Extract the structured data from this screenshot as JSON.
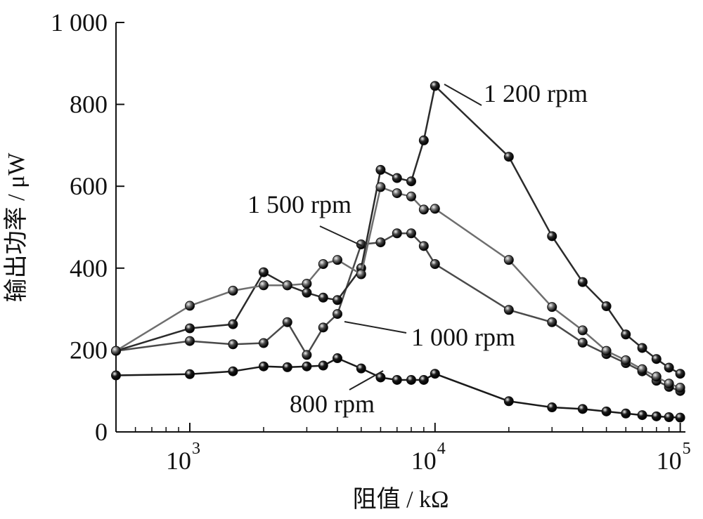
{
  "chart_data": {
    "type": "line",
    "title": "",
    "xlabel": "阻值 / kΩ",
    "ylabel": "输出功率 / μW",
    "xscale": "log",
    "xlim": [
      500,
      105000
    ],
    "ylim": [
      0,
      1000
    ],
    "x_ticks": [
      {
        "base": "10",
        "exp": "3",
        "value": 1000
      },
      {
        "base": "10",
        "exp": "4",
        "value": 10000
      },
      {
        "base": "10",
        "exp": "5",
        "value": 100000
      }
    ],
    "y_ticks": [
      {
        "label": "0",
        "value": 0
      },
      {
        "label": "200",
        "value": 200
      },
      {
        "label": "400",
        "value": 400
      },
      {
        "label": "600",
        "value": 600
      },
      {
        "label": "800",
        "value": 800
      },
      {
        "label": "1 000",
        "value": 1000
      }
    ],
    "grid": false,
    "legend": "none",
    "series": [
      {
        "name": "800 rpm",
        "color": "#1a1a1a",
        "x": [
          500,
          1000,
          1500,
          2000,
          2500,
          3000,
          3500,
          4000,
          5000,
          6000,
          7000,
          8000,
          9000,
          10000,
          20000,
          30000,
          40000,
          50000,
          60000,
          70000,
          80000,
          90000,
          100000
        ],
        "y": [
          138,
          141,
          148,
          160,
          158,
          160,
          162,
          180,
          155,
          133,
          127,
          127,
          127,
          142,
          75,
          60,
          56,
          50,
          45,
          41,
          38,
          36,
          35
        ]
      },
      {
        "name": "1 000 rpm",
        "color": "#4a4a4a",
        "x": [
          500,
          1000,
          1500,
          2000,
          2500,
          3000,
          3500,
          4000,
          5000,
          6000,
          7000,
          8000,
          9000,
          10000,
          20000,
          30000,
          40000,
          50000,
          60000,
          70000,
          80000,
          90000,
          100000
        ],
        "y": [
          198,
          222,
          214,
          217,
          268,
          188,
          255,
          288,
          458,
          463,
          485,
          485,
          454,
          410,
          298,
          268,
          218,
          190,
          168,
          148,
          125,
          110,
          100
        ]
      },
      {
        "name": "1 200 rpm",
        "color": "#2b2b2b",
        "x": [
          500,
          1000,
          1500,
          2000,
          2500,
          3000,
          3500,
          4000,
          5000,
          6000,
          7000,
          8000,
          9000,
          10000,
          20000,
          30000,
          40000,
          50000,
          60000,
          70000,
          80000,
          90000,
          100000
        ],
        "y": [
          198,
          253,
          263,
          390,
          358,
          340,
          328,
          322,
          400,
          640,
          620,
          612,
          712,
          845,
          672,
          478,
          366,
          307,
          238,
          205,
          178,
          157,
          142
        ]
      },
      {
        "name": "1 500 rpm",
        "color": "#6e6e6e",
        "x": [
          500,
          1000,
          1500,
          2000,
          2500,
          3000,
          3500,
          4000,
          5000,
          6000,
          7000,
          8000,
          9000,
          10000,
          20000,
          30000,
          40000,
          50000,
          60000,
          70000,
          80000,
          90000,
          100000
        ],
        "y": [
          198,
          308,
          345,
          358,
          358,
          362,
          410,
          420,
          385,
          598,
          583,
          575,
          543,
          545,
          420,
          305,
          248,
          198,
          175,
          153,
          135,
          118,
          108
        ]
      }
    ],
    "annotations": [
      {
        "text": "1 200 rpm",
        "series": "1 200 rpm"
      },
      {
        "text": "1 500 rpm",
        "series": "1 500 rpm"
      },
      {
        "text": "1 000 rpm",
        "series": "1 000 rpm"
      },
      {
        "text": "800 rpm",
        "series": "800 rpm"
      }
    ]
  }
}
